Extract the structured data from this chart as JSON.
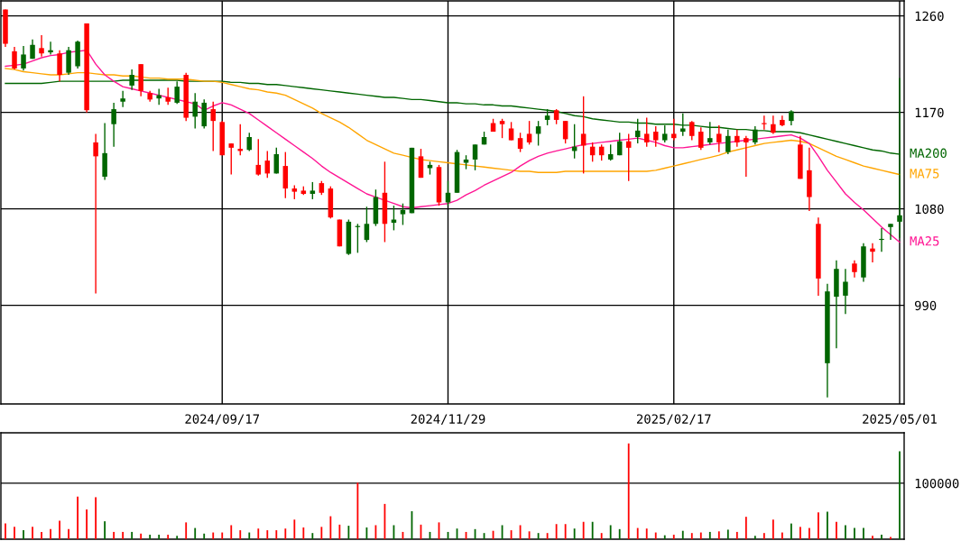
{
  "chart_data": [
    {
      "type": "candlestick",
      "categories": [
        null,
        null,
        null,
        null,
        null,
        null,
        null,
        null,
        null,
        null,
        null,
        null,
        null,
        null,
        null,
        null,
        null,
        null,
        null,
        null,
        null,
        null,
        null,
        null,
        "2024/09/17",
        null,
        null,
        null,
        null,
        null,
        null,
        null,
        null,
        null,
        null,
        null,
        null,
        null,
        null,
        null,
        null,
        null,
        null,
        null,
        null,
        null,
        null,
        null,
        null,
        "2024/11/29",
        null,
        null,
        null,
        null,
        null,
        null,
        null,
        null,
        null,
        null,
        null,
        null,
        null,
        null,
        null,
        null,
        null,
        null,
        null,
        null,
        null,
        null,
        null,
        null,
        "2025/02/17",
        null,
        null,
        null,
        null,
        null,
        null,
        null,
        null,
        null,
        null,
        null,
        null,
        null,
        null,
        null,
        null,
        null,
        null,
        null,
        null,
        null,
        null,
        null,
        null,
        "2025/05/01"
      ],
      "ohlc": [
        [
          1266,
          1266,
          1231,
          1234
        ],
        [
          1227,
          1231,
          1210,
          1211
        ],
        [
          1211,
          1232,
          1209,
          1224
        ],
        [
          1220,
          1238,
          1220,
          1233
        ],
        [
          1230,
          1242,
          1222,
          1225
        ],
        [
          1226,
          1236,
          1224,
          1228
        ],
        [
          1225,
          1228,
          1199,
          1205
        ],
        [
          1207,
          1231,
          1205,
          1228
        ],
        [
          1213,
          1237,
          1211,
          1236
        ],
        [
          1253,
          1253,
          1170,
          1172
        ],
        [
          1142,
          1150,
          1001,
          1129
        ],
        [
          1110,
          1160,
          1107,
          1132
        ],
        [
          1159,
          1179,
          1138,
          1173
        ],
        [
          1180,
          1190,
          1175,
          1183
        ],
        [
          1195,
          1210,
          1191,
          1205
        ],
        [
          1215,
          1215,
          1185,
          1190
        ],
        [
          1188,
          1190,
          1180,
          1182
        ],
        [
          1183,
          1192,
          1177,
          1186
        ],
        [
          1184,
          1193,
          1177,
          1180
        ],
        [
          1179,
          1199,
          1178,
          1194
        ],
        [
          1205,
          1207,
          1162,
          1165
        ],
        [
          1166,
          1188,
          1155,
          1180
        ],
        [
          1157,
          1182,
          1155,
          1179
        ],
        [
          1173,
          1180,
          1134,
          1162
        ],
        [
          1161,
          1162,
          1130,
          1130
        ],
        [
          1141,
          1141,
          1112,
          1137
        ],
        [
          1136,
          1159,
          1130,
          1134
        ],
        [
          1135,
          1151,
          1134,
          1147
        ],
        [
          1121,
          1145,
          1111,
          1112
        ],
        [
          1125,
          1134,
          1109,
          1113
        ],
        [
          1113,
          1137,
          1113,
          1131
        ],
        [
          1120,
          1133,
          1090,
          1099
        ],
        [
          1099,
          1102,
          1089,
          1096
        ],
        [
          1097,
          1101,
          1093,
          1094
        ],
        [
          1094,
          1105,
          1089,
          1097
        ],
        [
          1104,
          1106,
          1093,
          1095
        ],
        [
          1099,
          1101,
          1071,
          1072
        ],
        [
          1070,
          1070,
          1045,
          1045
        ],
        [
          1038,
          1070,
          1037,
          1068
        ],
        [
          1063,
          1066,
          1039,
          1064
        ],
        [
          1051,
          1082,
          1049,
          1066
        ],
        [
          1066,
          1098,
          1064,
          1091
        ],
        [
          1095,
          1124,
          1049,
          1066
        ],
        [
          1067,
          1083,
          1060,
          1070
        ],
        [
          1075,
          1085,
          1065,
          1079
        ],
        [
          1076,
          1137,
          1076,
          1137
        ],
        [
          1129,
          1136,
          1109,
          1109
        ],
        [
          1118,
          1124,
          1112,
          1121
        ],
        [
          1119,
          1121,
          1083,
          1086
        ],
        [
          1086,
          1106,
          1083,
          1095
        ],
        [
          1095,
          1135,
          1095,
          1133
        ],
        [
          1123,
          1130,
          1117,
          1126
        ],
        [
          1126,
          1140,
          1116,
          1140
        ],
        [
          1140,
          1152,
          1140,
          1147
        ],
        [
          1160,
          1164,
          1152,
          1152
        ],
        [
          1162,
          1164,
          1146,
          1159
        ],
        [
          1155,
          1161,
          1144,
          1144
        ],
        [
          1146,
          1151,
          1133,
          1136
        ],
        [
          1150,
          1162,
          1140,
          1142
        ],
        [
          1150,
          1162,
          1139,
          1157
        ],
        [
          1163,
          1173,
          1158,
          1167
        ],
        [
          1172,
          1173,
          1159,
          1163
        ],
        [
          1162,
          1162,
          1141,
          1145
        ],
        [
          1134,
          1159,
          1127,
          1138
        ],
        [
          1150,
          1185,
          1113,
          1139
        ],
        [
          1138,
          1142,
          1124,
          1130
        ],
        [
          1138,
          1140,
          1125,
          1130
        ],
        [
          1126,
          1140,
          1125,
          1131
        ],
        [
          1130,
          1151,
          1130,
          1143
        ],
        [
          1143,
          1150,
          1106,
          1137
        ],
        [
          1147,
          1164,
          1141,
          1153
        ],
        [
          1150,
          1165,
          1138,
          1142
        ],
        [
          1152,
          1157,
          1138,
          1144
        ],
        [
          1144,
          1158,
          1142,
          1150
        ],
        [
          1150,
          1164,
          1144,
          1146
        ],
        [
          1152,
          1169,
          1148,
          1155
        ],
        [
          1161,
          1162,
          1144,
          1148
        ],
        [
          1152,
          1156,
          1135,
          1137
        ],
        [
          1142,
          1161,
          1140,
          1146
        ],
        [
          1150,
          1158,
          1133,
          1142
        ],
        [
          1133,
          1154,
          1131,
          1148
        ],
        [
          1148,
          1154,
          1138,
          1142
        ],
        [
          1146,
          1148,
          1110,
          1142
        ],
        [
          1142,
          1157,
          1140,
          1154
        ],
        [
          1160,
          1167,
          1154,
          1159
        ],
        [
          1159,
          1167,
          1150,
          1151
        ],
        [
          1163,
          1167,
          1157,
          1158
        ],
        [
          1162,
          1172,
          1158,
          1171
        ],
        [
          1140,
          1148,
          1108,
          1108
        ],
        [
          1116,
          1137,
          1078,
          1091
        ],
        [
          1066,
          1072,
          999,
          1015
        ],
        [
          936,
          1010,
          904,
          1003
        ],
        [
          998,
          1032,
          950,
          1024
        ],
        [
          999,
          1024,
          982,
          1012
        ],
        [
          1029,
          1032,
          1016,
          1021
        ],
        [
          1016,
          1048,
          1012,
          1045
        ],
        [
          1043,
          1048,
          1030,
          1040
        ],
        [
          1051,
          1062,
          1040,
          1052
        ],
        [
          1063,
          1066,
          1051,
          1066
        ],
        [
          1068,
          1202,
          1053,
          1074
        ]
      ],
      "colors": [
        "#ff0000",
        "#ff0000",
        "#006600",
        "#006600",
        "#ff0000",
        "#006600",
        "#ff0000",
        "#006600",
        "#006600",
        "#ff0000",
        "#ff0000",
        "#006600",
        "#006600",
        "#006600",
        "#006600",
        "#ff0000",
        "#ff0000",
        "#006600",
        "#ff0000",
        "#006600",
        "#ff0000",
        "#006600",
        "#006600",
        "#ff0000",
        "#ff0000",
        "#ff0000",
        "#ff0000",
        "#006600",
        "#ff0000",
        "#ff0000",
        "#006600",
        "#ff0000",
        "#ff0000",
        "#ff0000",
        "#006600",
        "#ff0000",
        "#ff0000",
        "#ff0000",
        "#006600",
        "#006600",
        "#006600",
        "#006600",
        "#ff0000",
        "#006600",
        "#006600",
        "#006600",
        "#ff0000",
        "#006600",
        "#ff0000",
        "#006600",
        "#006600",
        "#006600",
        "#006600",
        "#006600",
        "#ff0000",
        "#ff0000",
        "#ff0000",
        "#ff0000",
        "#ff0000",
        "#006600",
        "#006600",
        "#ff0000",
        "#ff0000",
        "#006600",
        "#ff0000",
        "#ff0000",
        "#ff0000",
        "#006600",
        "#006600",
        "#ff0000",
        "#006600",
        "#ff0000",
        "#ff0000",
        "#006600",
        "#ff0000",
        "#006600",
        "#ff0000",
        "#ff0000",
        "#006600",
        "#ff0000",
        "#006600",
        "#ff0000",
        "#ff0000",
        "#006600",
        "#ff0000",
        "#ff0000",
        "#ff0000",
        "#006600",
        "#ff0000",
        "#ff0000",
        "#ff0000",
        "#006600",
        "#006600",
        "#006600",
        "#ff0000",
        "#006600",
        "#ff0000",
        "#006600",
        "#006600",
        "#006600"
      ],
      "series": [
        {
          "name": "MA200",
          "type": "line",
          "color": "#006600",
          "values": [
            1197,
            1197,
            1197,
            1197,
            1197,
            1198,
            1199,
            1199,
            1199,
            1199,
            1199,
            1199,
            1199,
            1200,
            1200,
            1200,
            1200,
            1200,
            1200,
            1200,
            1199,
            1199,
            1199,
            1199,
            1199,
            1198,
            1198,
            1197,
            1197,
            1196,
            1196,
            1195,
            1194,
            1193,
            1192,
            1191,
            1190,
            1189,
            1188,
            1187,
            1186,
            1185,
            1184,
            1184,
            1183,
            1182,
            1182,
            1181,
            1180,
            1179,
            1179,
            1178,
            1178,
            1177,
            1177,
            1176,
            1176,
            1175,
            1174,
            1173,
            1172,
            1171,
            1169,
            1167,
            1166,
            1164,
            1163,
            1162,
            1161,
            1161,
            1160,
            1160,
            1159,
            1159,
            1159,
            1158,
            1158,
            1157,
            1156,
            1156,
            1155,
            1154,
            1154,
            1153,
            1153,
            1152,
            1152,
            1152,
            1151,
            1149,
            1147,
            1145,
            1143,
            1141,
            1139,
            1137,
            1135,
            1134,
            1132,
            1131
          ]
        },
        {
          "name": "MA75",
          "type": "line",
          "color": "#ffa500",
          "values": [
            1211,
            1210,
            1208,
            1207,
            1206,
            1205,
            1205,
            1206,
            1207,
            1207,
            1206,
            1205,
            1205,
            1204,
            1204,
            1203,
            1202,
            1202,
            1201,
            1201,
            1201,
            1200,
            1199,
            1199,
            1198,
            1196,
            1194,
            1192,
            1191,
            1189,
            1188,
            1186,
            1182,
            1178,
            1174,
            1169,
            1165,
            1161,
            1156,
            1150,
            1144,
            1140,
            1136,
            1132,
            1130,
            1128,
            1126,
            1125,
            1124,
            1123,
            1122,
            1121,
            1120,
            1119,
            1118,
            1117,
            1116,
            1115,
            1115,
            1114,
            1114,
            1114,
            1115,
            1115,
            1115,
            1115,
            1115,
            1115,
            1115,
            1115,
            1115,
            1115,
            1116,
            1118,
            1120,
            1122,
            1124,
            1126,
            1128,
            1130,
            1133,
            1135,
            1137,
            1139,
            1141,
            1142,
            1143,
            1144,
            1143,
            1141,
            1137,
            1133,
            1129,
            1126,
            1123,
            1120,
            1118,
            1116,
            1114,
            1112
          ]
        },
        {
          "name": "MA25",
          "type": "line",
          "color": "#ff1493",
          "values": [
            1213,
            1214,
            1215,
            1218,
            1221,
            1223,
            1224,
            1226,
            1227,
            1228,
            1215,
            1205,
            1199,
            1194,
            1192,
            1190,
            1188,
            1186,
            1184,
            1182,
            1180,
            1178,
            1172,
            1176,
            1179,
            1177,
            1173,
            1169,
            1163,
            1157,
            1151,
            1145,
            1139,
            1133,
            1127,
            1120,
            1114,
            1109,
            1104,
            1099,
            1094,
            1091,
            1088,
            1085,
            1082,
            1081,
            1082,
            1083,
            1084,
            1085,
            1088,
            1093,
            1097,
            1102,
            1106,
            1110,
            1114,
            1120,
            1125,
            1129,
            1132,
            1134,
            1136,
            1138,
            1140,
            1141,
            1142,
            1143,
            1144,
            1145,
            1146,
            1144,
            1142,
            1139,
            1137,
            1137,
            1138,
            1139,
            1140,
            1141,
            1142,
            1143,
            1144,
            1145,
            1146,
            1147,
            1148,
            1149,
            1146,
            1141,
            1129,
            1116,
            1105,
            1094,
            1086,
            1079,
            1071,
            1063,
            1056,
            1049
          ]
        }
      ],
      "ylim": [
        898,
        1274
      ],
      "yticks": [
        990,
        1080,
        1170,
        1260
      ],
      "grid": true,
      "legend": false
    },
    {
      "type": "bar",
      "categories": [
        null,
        null,
        null,
        null,
        null,
        null,
        null,
        null,
        null,
        null,
        null,
        null,
        null,
        null,
        null,
        null,
        null,
        null,
        null,
        null,
        null,
        null,
        null,
        null,
        null,
        null,
        null,
        null,
        null,
        null,
        null,
        null,
        null,
        null,
        null,
        null,
        null,
        null,
        null,
        null,
        null,
        null,
        null,
        null,
        null,
        null,
        null,
        null,
        null,
        null,
        null,
        null,
        null,
        null,
        null,
        null,
        null,
        null,
        null,
        null,
        null,
        null,
        null,
        null,
        null,
        null,
        null,
        null,
        null,
        null,
        null,
        null,
        null,
        null,
        null,
        null,
        null,
        null,
        null,
        null,
        null,
        null,
        null,
        null,
        null,
        null,
        null,
        null,
        null,
        null,
        null,
        null,
        null,
        null,
        null,
        null,
        null,
        null,
        null,
        null
      ],
      "values": [
        28000,
        22000,
        16000,
        22000,
        13000,
        18000,
        33000,
        18000,
        76000,
        53000,
        75000,
        32000,
        13000,
        13000,
        13000,
        10000,
        8000,
        8000,
        8000,
        6000,
        30000,
        20000,
        10000,
        12000,
        12000,
        25000,
        16000,
        12000,
        19000,
        16000,
        16000,
        19000,
        35000,
        21000,
        11000,
        22000,
        41000,
        26000,
        24000,
        101000,
        21000,
        25000,
        63000,
        25000,
        13000,
        50000,
        26000,
        13000,
        30000,
        13000,
        19000,
        13000,
        18000,
        11000,
        15000,
        25000,
        16000,
        25000,
        14000,
        11000,
        11000,
        27000,
        27000,
        19000,
        31000,
        31000,
        11000,
        25000,
        18000,
        171000,
        20000,
        19000,
        12000,
        7000,
        8000,
        15000,
        11000,
        12000,
        13000,
        14000,
        17000,
        13000,
        40000,
        6000,
        11000,
        35000,
        12000,
        28000,
        22000,
        20000,
        48000,
        49000,
        31000,
        25000,
        20000,
        20000,
        6000,
        8000,
        4000,
        157000
      ],
      "colors": [
        "#ff0000",
        "#ff0000",
        "#006600",
        "#ff0000",
        "#ff0000",
        "#ff0000",
        "#ff0000",
        "#ff0000",
        "#ff0000",
        "#ff0000",
        "#ff0000",
        "#006600",
        "#ff0000",
        "#ff0000",
        "#006600",
        "#ff0000",
        "#006600",
        "#006600",
        "#ff0000",
        "#006600",
        "#ff0000",
        "#006600",
        "#006600",
        "#ff0000",
        "#ff0000",
        "#ff0000",
        "#ff0000",
        "#006600",
        "#ff0000",
        "#ff0000",
        "#ff0000",
        "#ff0000",
        "#ff0000",
        "#ff0000",
        "#006600",
        "#ff0000",
        "#ff0000",
        "#ff0000",
        "#006600",
        "#ff0000",
        "#006600",
        "#ff0000",
        "#ff0000",
        "#006600",
        "#ff0000",
        "#006600",
        "#ff0000",
        "#006600",
        "#ff0000",
        "#006600",
        "#006600",
        "#ff0000",
        "#006600",
        "#006600",
        "#ff0000",
        "#006600",
        "#ff0000",
        "#ff0000",
        "#ff0000",
        "#006600",
        "#ff0000",
        "#ff0000",
        "#ff0000",
        "#006600",
        "#ff0000",
        "#006600",
        "#ff0000",
        "#006600",
        "#006600",
        "#ff0000",
        "#ff0000",
        "#ff0000",
        "#ff0000",
        "#006600",
        "#ff0000",
        "#006600",
        "#ff0000",
        "#ff0000",
        "#006600",
        "#ff0000",
        "#006600",
        "#ff0000",
        "#ff0000",
        "#006600",
        "#ff0000",
        "#ff0000",
        "#ff0000",
        "#006600",
        "#ff0000",
        "#ff0000",
        "#ff0000",
        "#006600",
        "#ff0000",
        "#006600",
        "#006600",
        "#006600",
        "#ff0000",
        "#006600",
        "#ff0000",
        "#006600"
      ],
      "ylim": [
        0,
        190000
      ],
      "yticks": [
        100000
      ],
      "grid": "y",
      "tick_labels": "y",
      "legend": false
    }
  ]
}
